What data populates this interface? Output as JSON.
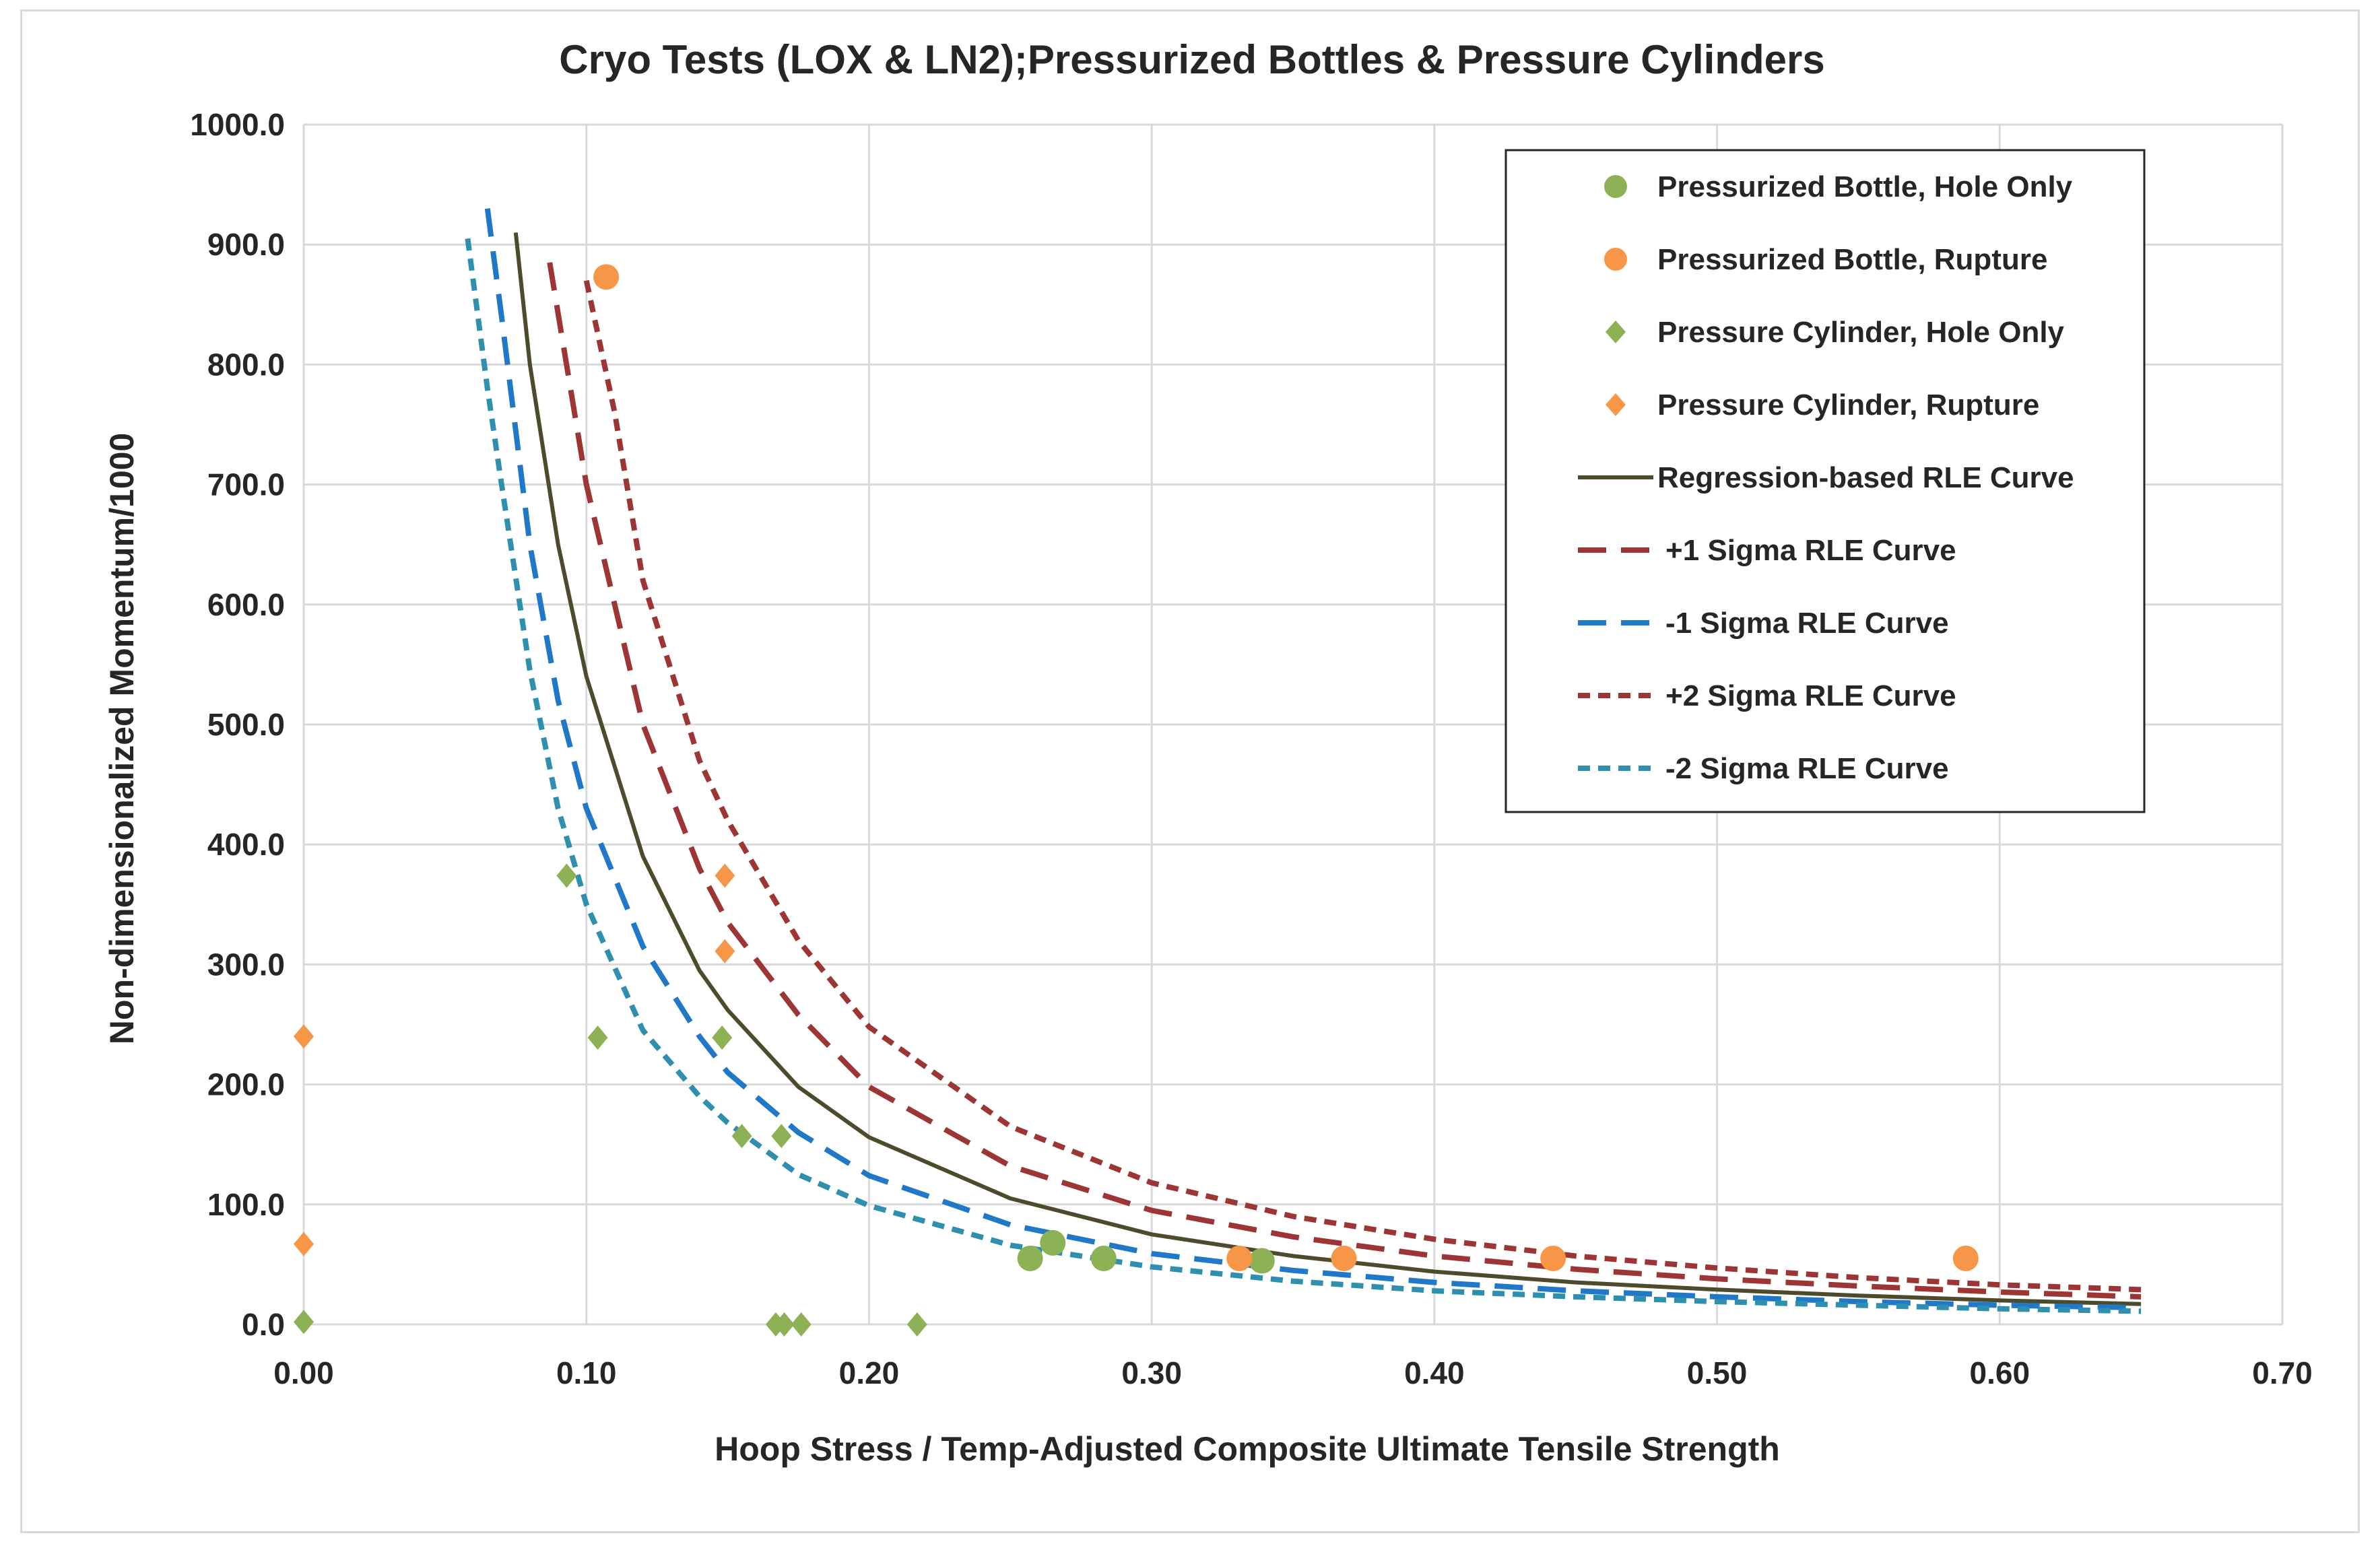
{
  "colors": {
    "green": "#8db255",
    "orange": "#f79646",
    "regression": "#4e4b2c",
    "plus1": "#9e3535",
    "minus1": "#1f78c8",
    "plus2": "#9e3535",
    "minus2": "#2f8fae",
    "grid": "#d9d9d9",
    "text": "#262626"
  },
  "chart_data": {
    "type": "scatter",
    "title": "Cryo Tests (LOX & LN2);Pressurized Bottles & Pressure Cylinders",
    "xlabel": "Hoop Stress / Temp-Adjusted Composite Ultimate Tensile Strength",
    "ylabel": "Non-dimensionalized Momentum/1000",
    "xlim": [
      0,
      0.7
    ],
    "ylim": [
      0,
      1000
    ],
    "x_ticks": [
      "0.00",
      "0.10",
      "0.20",
      "0.30",
      "0.40",
      "0.50",
      "0.60",
      "0.70"
    ],
    "y_ticks": [
      "0.0",
      "100.0",
      "200.0",
      "300.0",
      "400.0",
      "500.0",
      "600.0",
      "700.0",
      "800.0",
      "900.0",
      "1000.0"
    ],
    "grid": true,
    "legend_position": "top-right",
    "series": [
      {
        "name": "Pressurized Bottle, Hole Only",
        "kind": "marker",
        "marker": "circle",
        "color": "#8db255",
        "points": [
          [
            0.257,
            55
          ],
          [
            0.265,
            68
          ],
          [
            0.283,
            55
          ],
          [
            0.339,
            53
          ]
        ]
      },
      {
        "name": "Pressurized Bottle, Rupture",
        "kind": "marker",
        "marker": "circle",
        "color": "#f79646",
        "points": [
          [
            0.107,
            873
          ],
          [
            0.331,
            55
          ],
          [
            0.368,
            55
          ],
          [
            0.442,
            55
          ],
          [
            0.588,
            55
          ]
        ]
      },
      {
        "name": "Pressure Cylinder, Hole Only",
        "kind": "marker",
        "marker": "diamond",
        "color": "#8db255",
        "points": [
          [
            0.0,
            2
          ],
          [
            0.093,
            374
          ],
          [
            0.104,
            239
          ],
          [
            0.148,
            239
          ],
          [
            0.155,
            157
          ],
          [
            0.169,
            157
          ],
          [
            0.167,
            0
          ],
          [
            0.17,
            0
          ],
          [
            0.176,
            0
          ],
          [
            0.217,
            0
          ]
        ]
      },
      {
        "name": "Pressure Cylinder, Rupture",
        "kind": "marker",
        "marker": "diamond",
        "color": "#f79646",
        "points": [
          [
            0.0,
            240
          ],
          [
            0.0,
            67
          ],
          [
            0.149,
            374
          ],
          [
            0.149,
            311
          ]
        ]
      },
      {
        "name": "Regression-based RLE Curve",
        "kind": "line",
        "dash": "solid",
        "color": "#4e4b2c",
        "points": [
          [
            0.075,
            910
          ],
          [
            0.08,
            800
          ],
          [
            0.09,
            650
          ],
          [
            0.1,
            540
          ],
          [
            0.12,
            390
          ],
          [
            0.14,
            295
          ],
          [
            0.15,
            262
          ],
          [
            0.175,
            198
          ],
          [
            0.2,
            156
          ],
          [
            0.25,
            105
          ],
          [
            0.3,
            75
          ],
          [
            0.35,
            57
          ],
          [
            0.4,
            44
          ],
          [
            0.45,
            35
          ],
          [
            0.5,
            29
          ],
          [
            0.55,
            24
          ],
          [
            0.6,
            20
          ],
          [
            0.65,
            17
          ]
        ]
      },
      {
        "name": "+1 Sigma RLE Curve",
        "kind": "line",
        "dash": "long",
        "color": "#9e3535",
        "points": [
          [
            0.087,
            885
          ],
          [
            0.1,
            700
          ],
          [
            0.12,
            500
          ],
          [
            0.14,
            380
          ],
          [
            0.15,
            335
          ],
          [
            0.175,
            258
          ],
          [
            0.2,
            198
          ],
          [
            0.25,
            132
          ],
          [
            0.3,
            95
          ],
          [
            0.35,
            73
          ],
          [
            0.4,
            57
          ],
          [
            0.45,
            46
          ],
          [
            0.5,
            38
          ],
          [
            0.55,
            32
          ],
          [
            0.6,
            27
          ],
          [
            0.65,
            23
          ]
        ]
      },
      {
        "name": "-1 Sigma RLE Curve",
        "kind": "line",
        "dash": "long",
        "color": "#1f78c8",
        "points": [
          [
            0.065,
            930
          ],
          [
            0.07,
            840
          ],
          [
            0.08,
            650
          ],
          [
            0.09,
            520
          ],
          [
            0.1,
            430
          ],
          [
            0.12,
            315
          ],
          [
            0.14,
            240
          ],
          [
            0.15,
            210
          ],
          [
            0.175,
            160
          ],
          [
            0.2,
            124
          ],
          [
            0.25,
            83
          ],
          [
            0.3,
            59
          ],
          [
            0.35,
            45
          ],
          [
            0.4,
            35
          ],
          [
            0.45,
            28
          ],
          [
            0.5,
            23
          ],
          [
            0.55,
            19
          ],
          [
            0.6,
            16
          ],
          [
            0.65,
            14
          ]
        ]
      },
      {
        "name": "+2 Sigma RLE Curve",
        "kind": "line",
        "dash": "short",
        "color": "#9e3535",
        "points": [
          [
            0.1,
            870
          ],
          [
            0.11,
            760
          ],
          [
            0.12,
            620
          ],
          [
            0.14,
            470
          ],
          [
            0.15,
            420
          ],
          [
            0.175,
            320
          ],
          [
            0.2,
            248
          ],
          [
            0.25,
            165
          ],
          [
            0.3,
            118
          ],
          [
            0.35,
            90
          ],
          [
            0.4,
            71
          ],
          [
            0.45,
            57
          ],
          [
            0.5,
            47
          ],
          [
            0.55,
            39
          ],
          [
            0.6,
            33
          ],
          [
            0.65,
            29
          ]
        ]
      },
      {
        "name": "-2 Sigma RLE Curve",
        "kind": "line",
        "dash": "short",
        "color": "#2f8fae",
        "points": [
          [
            0.058,
            905
          ],
          [
            0.065,
            780
          ],
          [
            0.07,
            700
          ],
          [
            0.08,
            545
          ],
          [
            0.09,
            430
          ],
          [
            0.1,
            350
          ],
          [
            0.12,
            245
          ],
          [
            0.14,
            190
          ],
          [
            0.15,
            168
          ],
          [
            0.175,
            125
          ],
          [
            0.2,
            99
          ],
          [
            0.25,
            66
          ],
          [
            0.3,
            48
          ],
          [
            0.35,
            36
          ],
          [
            0.4,
            28
          ],
          [
            0.45,
            23
          ],
          [
            0.5,
            19
          ],
          [
            0.55,
            16
          ],
          [
            0.6,
            13
          ],
          [
            0.65,
            11
          ]
        ]
      }
    ]
  }
}
